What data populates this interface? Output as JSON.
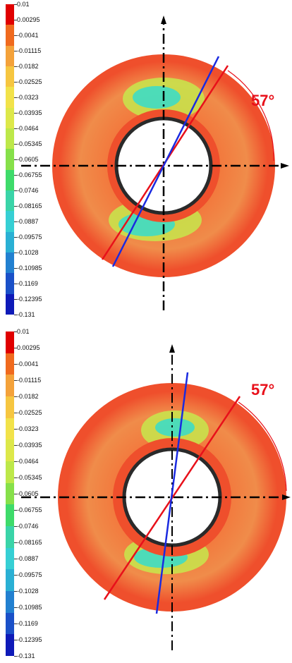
{
  "colorbar": {
    "ticks": [
      "0.01",
      "0.00295",
      "-0.0041",
      "-0.01115",
      "-0.0182",
      "-0.02525",
      "-0.0323",
      "-0.03935",
      "-0.0464",
      "-0.05345",
      "-0.0605",
      "-0.06755",
      "-0.0746",
      "-0.08165",
      "-0.0887",
      "-0.09575",
      "-0.1028",
      "-0.10985",
      "-0.1169",
      "-0.12395",
      "-0.131"
    ],
    "colors": [
      "#e00000",
      "#f06a1e",
      "#f4a23a",
      "#f6c640",
      "#f2e24a",
      "#dde84a",
      "#bde84a",
      "#86e04a",
      "#3edb6a",
      "#3ad4a8",
      "#36cfd4",
      "#2ab0d4",
      "#2280d0",
      "#1a50c8",
      "#0e1ab8"
    ]
  },
  "panels": [
    {
      "id": "top",
      "angle_label": "57°",
      "line_colors": {
        "red": "#e8101a",
        "blue": "#1a2ae0"
      }
    },
    {
      "id": "bottom",
      "angle_label": "57°",
      "line_colors": {
        "red": "#e8101a",
        "blue": "#1a2ae0"
      }
    }
  ],
  "colors": {
    "outer_ring": "#ef4f2c",
    "body": "#f08c4a",
    "low_zone": "#3fdcc4",
    "mid_zone": "#c7e84c",
    "hole_border": "#2a2a2a",
    "axis": "#000000",
    "accent": "#e8101a"
  }
}
